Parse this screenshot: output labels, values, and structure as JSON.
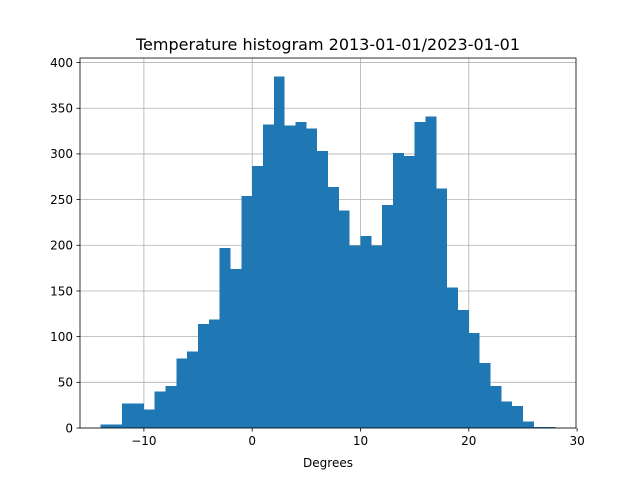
{
  "chart_data": {
    "type": "bar",
    "title": "Temperature histogram 2013-01-01/2023-01-01",
    "xlabel": "Degrees",
    "ylabel": "",
    "xlim": [
      -15.9,
      29.9
    ],
    "ylim": [
      0,
      405
    ],
    "xticks": [
      -10,
      0,
      10,
      20,
      30
    ],
    "xtick_labels": [
      "−10",
      "0",
      "10",
      "20",
      "30"
    ],
    "yticks": [
      0,
      50,
      100,
      150,
      200,
      250,
      300,
      350,
      400
    ],
    "ytick_labels": [
      "0",
      "50",
      "100",
      "150",
      "200",
      "250",
      "300",
      "350",
      "400"
    ],
    "grid": true,
    "bar_color": "#1f77b4",
    "bins": [
      {
        "x0": -14.0,
        "x1": -13.0,
        "count": 4
      },
      {
        "x0": -13.0,
        "x1": -12.0,
        "count": 4
      },
      {
        "x0": -12.0,
        "x1": -11.0,
        "count": 27
      },
      {
        "x0": -11.0,
        "x1": -10.0,
        "count": 27
      },
      {
        "x0": -10.0,
        "x1": -9.0,
        "count": 20
      },
      {
        "x0": -9.0,
        "x1": -8.0,
        "count": 40
      },
      {
        "x0": -8.0,
        "x1": -7.0,
        "count": 46
      },
      {
        "x0": -7.0,
        "x1": -6.0,
        "count": 76
      },
      {
        "x0": -6.0,
        "x1": -5.0,
        "count": 84
      },
      {
        "x0": -5.0,
        "x1": -4.0,
        "count": 114
      },
      {
        "x0": -4.0,
        "x1": -3.0,
        "count": 119
      },
      {
        "x0": -3.0,
        "x1": -2.0,
        "count": 197
      },
      {
        "x0": -2.0,
        "x1": -1.0,
        "count": 174
      },
      {
        "x0": -1.0,
        "x1": 0.0,
        "count": 254
      },
      {
        "x0": 0.0,
        "x1": 1.0,
        "count": 287
      },
      {
        "x0": 1.0,
        "x1": 2.0,
        "count": 332
      },
      {
        "x0": 2.0,
        "x1": 3.0,
        "count": 385
      },
      {
        "x0": 3.0,
        "x1": 4.0,
        "count": 331
      },
      {
        "x0": 4.0,
        "x1": 5.0,
        "count": 335
      },
      {
        "x0": 5.0,
        "x1": 6.0,
        "count": 328
      },
      {
        "x0": 6.0,
        "x1": 7.0,
        "count": 303
      },
      {
        "x0": 7.0,
        "x1": 8.0,
        "count": 264
      },
      {
        "x0": 8.0,
        "x1": 9.0,
        "count": 238
      },
      {
        "x0": 9.0,
        "x1": 10.0,
        "count": 200
      },
      {
        "x0": 10.0,
        "x1": 11.0,
        "count": 210
      },
      {
        "x0": 11.0,
        "x1": 12.0,
        "count": 200
      },
      {
        "x0": 12.0,
        "x1": 13.0,
        "count": 244
      },
      {
        "x0": 13.0,
        "x1": 14.0,
        "count": 301
      },
      {
        "x0": 14.0,
        "x1": 15.0,
        "count": 298
      },
      {
        "x0": 15.0,
        "x1": 16.0,
        "count": 335
      },
      {
        "x0": 16.0,
        "x1": 17.0,
        "count": 341
      },
      {
        "x0": 17.0,
        "x1": 18.0,
        "count": 262
      },
      {
        "x0": 18.0,
        "x1": 19.0,
        "count": 154
      },
      {
        "x0": 19.0,
        "x1": 20.0,
        "count": 129
      },
      {
        "x0": 20.0,
        "x1": 21.0,
        "count": 104
      },
      {
        "x0": 21.0,
        "x1": 22.0,
        "count": 71
      },
      {
        "x0": 22.0,
        "x1": 23.0,
        "count": 46
      },
      {
        "x0": 23.0,
        "x1": 24.0,
        "count": 29
      },
      {
        "x0": 24.0,
        "x1": 25.0,
        "count": 24
      },
      {
        "x0": 25.0,
        "x1": 26.0,
        "count": 7
      },
      {
        "x0": 26.0,
        "x1": 27.0,
        "count": 1
      },
      {
        "x0": 27.0,
        "x1": 28.0,
        "count": 1
      }
    ]
  }
}
